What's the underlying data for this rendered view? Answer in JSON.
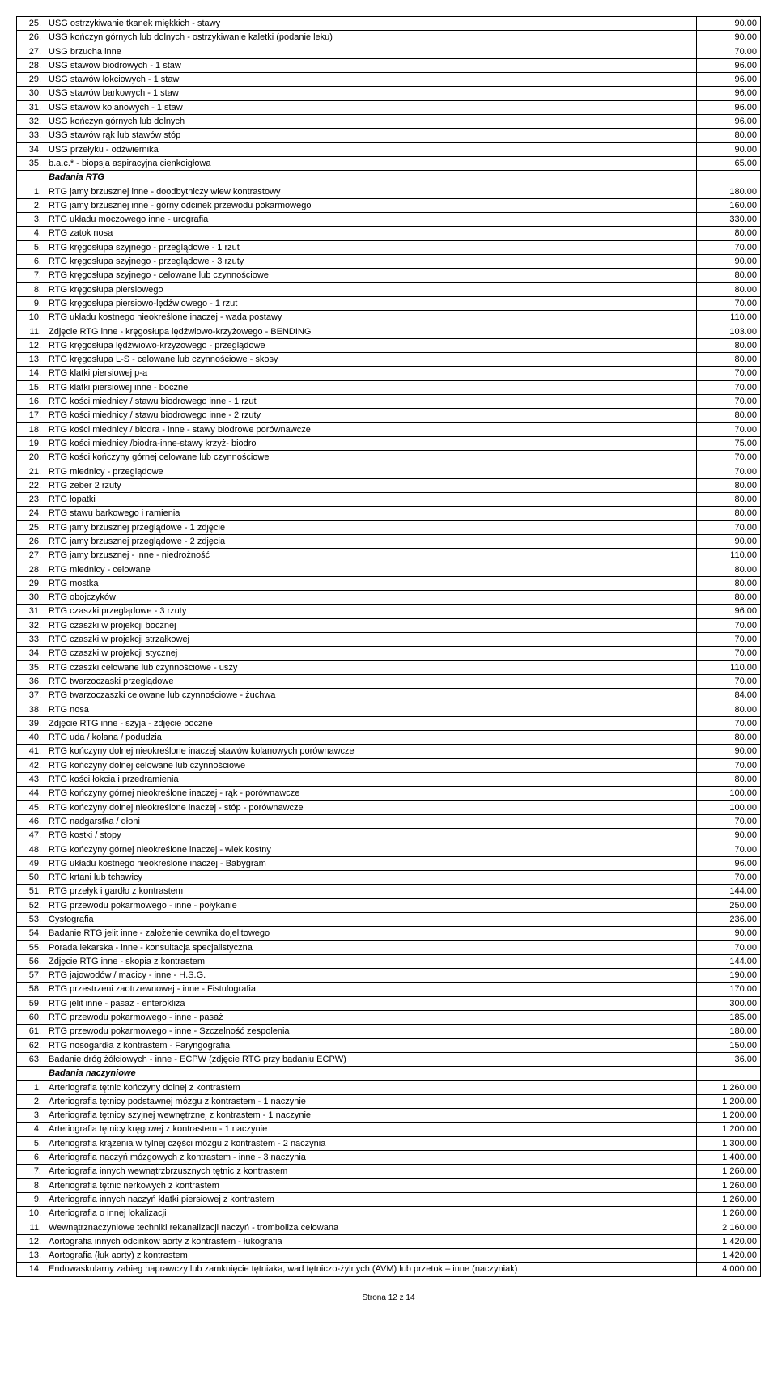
{
  "footer": "Strona 12 z 14",
  "rows": [
    {
      "n": "25.",
      "d": "USG ostrzykiwanie tkanek miękkich - stawy",
      "p": "90.00"
    },
    {
      "n": "26.",
      "d": "USG kończyn górnych lub dolnych - ostrzykiwanie kaletki (podanie leku)",
      "p": "90.00"
    },
    {
      "n": "27.",
      "d": "USG brzucha inne",
      "p": "70.00"
    },
    {
      "n": "28.",
      "d": "USG stawów biodrowych - 1 staw",
      "p": "96.00"
    },
    {
      "n": "29.",
      "d": "USG stawów łokciowych - 1 staw",
      "p": "96.00"
    },
    {
      "n": "30.",
      "d": "USG stawów barkowych - 1 staw",
      "p": "96.00"
    },
    {
      "n": "31.",
      "d": "USG stawów kolanowych - 1 staw",
      "p": "96.00"
    },
    {
      "n": "32.",
      "d": "USG kończyn górnych lub dolnych",
      "p": "96.00"
    },
    {
      "n": "33.",
      "d": "USG stawów rąk lub stawów stóp",
      "p": "80.00"
    },
    {
      "n": "34.",
      "d": "USG przełyku - odźwiernika",
      "p": "90.00"
    },
    {
      "n": "35.",
      "d": "b.a.c.* - biopsja aspiracyjna cienkoigłowa",
      "p": "65.00"
    },
    {
      "section": true,
      "d": "Badania RTG"
    },
    {
      "n": "1.",
      "d": "RTG jamy brzusznej inne - doodbytniczy wlew  kontrastowy",
      "p": "180.00"
    },
    {
      "n": "2.",
      "d": "RTG jamy brzusznej inne - górny odcinek przewodu pokarmowego",
      "p": "160.00"
    },
    {
      "n": "3.",
      "d": "RTG układu moczowego inne - urografia",
      "p": "330.00"
    },
    {
      "n": "4.",
      "d": "RTG zatok nosa",
      "p": "80.00"
    },
    {
      "n": "5.",
      "d": "RTG kręgosłupa szyjnego - przeglądowe - 1 rzut",
      "p": "70.00"
    },
    {
      "n": "6.",
      "d": "RTG kręgosłupa szyjnego - przeglądowe - 3 rzuty",
      "p": "90.00"
    },
    {
      "n": "7.",
      "d": "RTG kręgosłupa szyjnego - celowane lub czynnościowe",
      "p": "80.00"
    },
    {
      "n": "8.",
      "d": "RTG kręgosłupa piersiowego",
      "p": "80.00"
    },
    {
      "n": "9.",
      "d": "RTG kręgosłupa piersiowo-lędźwiowego - 1 rzut",
      "p": "70.00"
    },
    {
      "n": "10.",
      "d": "RTG układu kostnego nieokreślone inaczej - wada postawy",
      "p": "110.00"
    },
    {
      "n": "11.",
      "d": "Zdjęcie RTG inne - kręgosłupa lędźwiowo-krzyżowego - BENDING",
      "p": "103.00"
    },
    {
      "n": "12.",
      "d": "RTG kręgosłupa lędźwiowo-krzyżowego - przeglądowe",
      "p": "80.00"
    },
    {
      "n": "13.",
      "d": "RTG kręgosłupa L-S - celowane lub czynnościowe - skosy",
      "p": "80.00"
    },
    {
      "n": "14.",
      "d": "RTG klatki piersiowej p-a",
      "p": "70.00"
    },
    {
      "n": "15.",
      "d": "RTG klatki piersiowej inne - boczne",
      "p": "70.00"
    },
    {
      "n": "16.",
      "d": "RTG kości miednicy / stawu biodrowego inne - 1 rzut",
      "p": "70.00"
    },
    {
      "n": "17.",
      "d": "RTG kości miednicy / stawu biodrowego inne - 2 rzuty",
      "p": "80.00"
    },
    {
      "n": "18.",
      "d": "RTG kości miednicy / biodra - inne - stawy biodrowe porównawcze",
      "p": "70.00"
    },
    {
      "n": "19.",
      "d": "RTG kości miednicy /biodra-inne-stawy krzyż- biodro",
      "p": "75.00"
    },
    {
      "n": "20.",
      "d": "RTG kości kończyny górnej celowane lub czynnościowe",
      "p": "70.00"
    },
    {
      "n": "21.",
      "d": "RTG miednicy - przeglądowe",
      "p": "70.00"
    },
    {
      "n": "22.",
      "d": "RTG żeber 2 rzuty",
      "p": "80.00"
    },
    {
      "n": "23.",
      "d": "RTG łopatki",
      "p": "80.00"
    },
    {
      "n": "24.",
      "d": "RTG stawu barkowego i ramienia",
      "p": "80.00"
    },
    {
      "n": "25.",
      "d": "RTG jamy brzusznej przeglądowe - 1 zdjęcie",
      "p": "70.00"
    },
    {
      "n": "26.",
      "d": "RTG jamy brzusznej przeglądowe - 2 zdjęcia",
      "p": "90.00"
    },
    {
      "n": "27.",
      "d": "RTG jamy brzusznej - inne - niedrożność",
      "p": "110.00"
    },
    {
      "n": "28.",
      "d": "RTG miednicy - celowane",
      "p": "80.00"
    },
    {
      "n": "29.",
      "d": "RTG mostka",
      "p": "80.00"
    },
    {
      "n": "30.",
      "d": "RTG obojczyków",
      "p": "80.00"
    },
    {
      "n": "31.",
      "d": "RTG czaszki przeglądowe - 3 rzuty",
      "p": "96.00"
    },
    {
      "n": "32.",
      "d": "RTG czaszki w projekcji bocznej",
      "p": "70.00"
    },
    {
      "n": "33.",
      "d": "RTG czaszki w projekcji strzałkowej",
      "p": "70.00"
    },
    {
      "n": "34.",
      "d": "RTG czaszki w projekcji stycznej",
      "p": "70.00"
    },
    {
      "n": "35.",
      "d": "RTG czaszki celowane lub czynnościowe - uszy",
      "p": "110.00"
    },
    {
      "n": "36.",
      "d": "RTG twarzoczaski przeglądowe",
      "p": "70.00"
    },
    {
      "n": "37.",
      "d": "RTG twarzoczaszki celowane lub czynnościowe - żuchwa",
      "p": "84.00"
    },
    {
      "n": "38.",
      "d": "RTG nosa",
      "p": "80.00"
    },
    {
      "n": "39.",
      "d": "Zdjęcie RTG inne - szyja - zdjęcie boczne",
      "p": "70.00"
    },
    {
      "n": "40.",
      "d": "RTG uda / kolana / podudzia",
      "p": "80.00"
    },
    {
      "n": "41.",
      "d": "RTG kończyny dolnej nieokreślone inaczej stawów kolanowych porównawcze",
      "p": "90.00"
    },
    {
      "n": "42.",
      "d": "RTG kończyny dolnej celowane lub czynnościowe",
      "p": "70.00"
    },
    {
      "n": "43.",
      "d": "RTG kości łokcia i przedramienia",
      "p": "80.00"
    },
    {
      "n": "44.",
      "d": "RTG kończyny górnej nieokreślone inaczej - rąk - porównawcze",
      "p": "100.00"
    },
    {
      "n": "45.",
      "d": "RTG kończyny dolnej nieokreślone inaczej - stóp - porównawcze",
      "p": "100.00"
    },
    {
      "n": "46.",
      "d": "RTG nadgarstka / dłoni",
      "p": "70.00"
    },
    {
      "n": "47.",
      "d": "RTG kostki / stopy",
      "p": "90.00"
    },
    {
      "n": "48.",
      "d": "RTG kończyny górnej nieokreślone inaczej - wiek kostny",
      "p": "70.00"
    },
    {
      "n": "49.",
      "d": "RTG układu kostnego nieokreślone inaczej - Babygram",
      "p": "96.00"
    },
    {
      "n": "50.",
      "d": "RTG krtani lub tchawicy",
      "p": "70.00"
    },
    {
      "n": "51.",
      "d": "RTG przełyk i gardło z kontrastem",
      "p": "144.00"
    },
    {
      "n": "52.",
      "d": "RTG przewodu pokarmowego - inne - połykanie",
      "p": "250.00"
    },
    {
      "n": "53.",
      "d": "Cystografia",
      "p": "236.00"
    },
    {
      "n": "54.",
      "d": "Badanie RTG jelit inne - założenie cewnika dojelitowego",
      "p": "90.00"
    },
    {
      "n": "55.",
      "d": "Porada lekarska - inne - konsultacja specjalistyczna",
      "p": "70.00"
    },
    {
      "n": "56.",
      "d": "Zdjęcie RTG inne - skopia z kontrastem",
      "p": "144.00"
    },
    {
      "n": "57.",
      "d": "RTG jajowodów / macicy - inne - H.S.G.",
      "p": "190.00"
    },
    {
      "n": "58.",
      "d": "RTG przestrzeni zaotrzewnowej - inne - Fistulografia",
      "p": "170.00"
    },
    {
      "n": "59.",
      "d": "RTG jelit inne - pasaż - enterokliza",
      "p": "300.00"
    },
    {
      "n": "60.",
      "d": "RTG przewodu pokarmowego - inne - pasaż",
      "p": "185.00"
    },
    {
      "n": "61.",
      "d": "RTG przewodu pokarmowego - inne - Szczelność zespolenia",
      "p": "180.00"
    },
    {
      "n": "62.",
      "d": "RTG nosogardła z kontrastem - Faryngografia",
      "p": "150.00"
    },
    {
      "n": "63.",
      "d": "Badanie dróg żółciowych - inne - ECPW (zdjęcie RTG przy badaniu ECPW)",
      "p": "36.00"
    },
    {
      "section": true,
      "d": "Badania naczyniowe"
    },
    {
      "n": "1.",
      "d": "Arteriografia tętnic kończyny dolnej z kontrastem",
      "p": "1 260.00"
    },
    {
      "n": "2.",
      "d": "Arteriografia tętnicy podstawnej mózgu z kontrastem - 1 naczynie",
      "p": "1 200.00"
    },
    {
      "n": "3.",
      "d": "Arteriografia tętnicy szyjnej wewnętrznej z kontrastem - 1 naczynie",
      "p": "1 200.00"
    },
    {
      "n": "4.",
      "d": "Arteriografia tętnicy kręgowej z kontrastem - 1 naczynie",
      "p": "1 200.00"
    },
    {
      "n": "5.",
      "d": "Arteriografia krążenia w tylnej części mózgu z kontrastem - 2 naczynia",
      "p": "1 300.00"
    },
    {
      "n": "6.",
      "d": "Arteriografia naczyń mózgowych z kontrastem - inne - 3 naczynia",
      "p": "1 400.00"
    },
    {
      "n": "7.",
      "d": "Arteriografia innych wewnątrzbrzusznych tętnic z kontrastem",
      "p": "1 260.00"
    },
    {
      "n": "8.",
      "d": "Arteriografia tętnic nerkowych z kontrastem",
      "p": "1 260.00"
    },
    {
      "n": "9.",
      "d": "Arteriografia innych naczyń klatki piersiowej z kontrastem",
      "p": "1 260.00"
    },
    {
      "n": "10.",
      "d": "Arteriografia o innej lokalizacji",
      "p": "1 260.00"
    },
    {
      "n": "11.",
      "d": "Wewnątrznaczyniowe techniki rekanalizacji naczyń - tromboliza celowana",
      "p": "2 160.00"
    },
    {
      "n": "12.",
      "d": "Aortografia innych odcinków aorty z kontrastem - łukografia",
      "p": "1 420.00"
    },
    {
      "n": "13.",
      "d": "Aortografia (łuk aorty) z kontrastem",
      "p": "1 420.00"
    },
    {
      "n": "14.",
      "d": "Endowaskularny zabieg naprawczy lub zamknięcie tętniaka, wad tętniczo-żylnych (AVM) lub przetok – inne (naczyniak)",
      "p": "4 000.00"
    }
  ]
}
